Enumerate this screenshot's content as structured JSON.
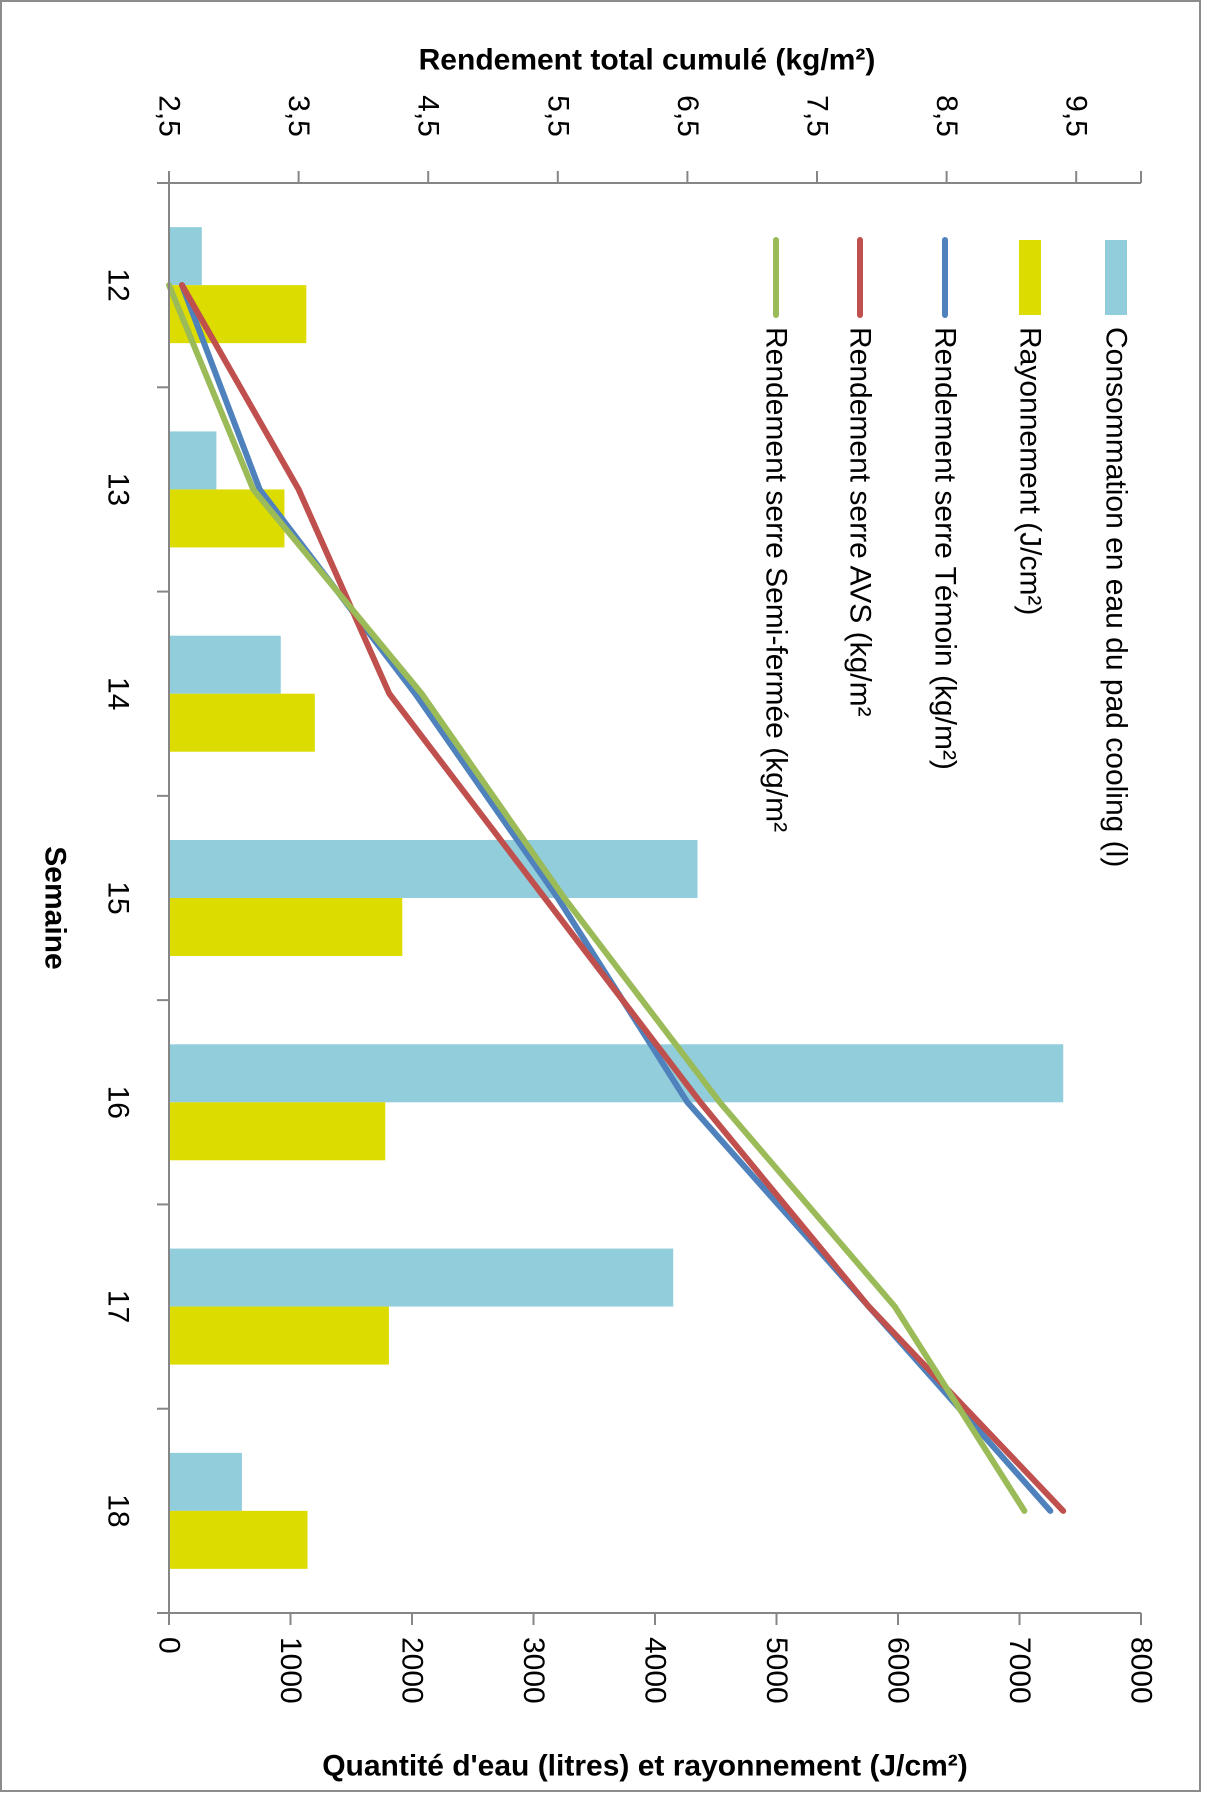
{
  "chart_data": {
    "type": "bar",
    "orientation": "rotated-90-clockwise",
    "categories": [
      "12",
      "13",
      "14",
      "15",
      "16",
      "17",
      "18"
    ],
    "xlabel": "Semaine",
    "primary_axis": {
      "label": "Quantité  d'eau (litres) et rayonnement (J/cm²)",
      "range": [
        0,
        8000
      ],
      "ticks": [
        "0",
        "1000",
        "2000",
        "3000",
        "4000",
        "5000",
        "6000",
        "7000",
        "8000"
      ]
    },
    "secondary_axis": {
      "label": "Rendement total cumulé (kg/m²)",
      "range": [
        2.5,
        10
      ],
      "ticks": [
        "2,5",
        "3,5",
        "4,5",
        "5,5",
        "6,5",
        "7,5",
        "8,5",
        "9,5"
      ]
    },
    "bar_series": [
      {
        "name": "Consommation en eau du pad cooling (l)",
        "color": "#92cddc",
        "values": [
          270,
          390,
          920,
          4350,
          7360,
          4150,
          600
        ]
      },
      {
        "name": "Rayonnement (J/cm²)",
        "color": "#dcdc00",
        "values": [
          1130,
          950,
          1200,
          1920,
          1780,
          1810,
          1140
        ]
      }
    ],
    "line_series": [
      {
        "name": "Rendement serre Témoin (kg/m²)",
        "color": "#4f81bd",
        "values": [
          2.6,
          3.2,
          4.4,
          5.5,
          6.5,
          7.9,
          9.3
        ]
      },
      {
        "name": "Rendement serre AVS (kg/m²",
        "color": "#c0504d",
        "values": [
          2.6,
          3.5,
          4.2,
          5.4,
          6.6,
          7.9,
          9.4
        ]
      },
      {
        "name": "Rendement serre Semi-fermée (kg/m²",
        "color": "#9bbb59",
        "values": [
          2.5,
          3.15,
          4.45,
          5.55,
          6.75,
          8.1,
          9.1
        ]
      }
    ],
    "legend_position": "top-right"
  },
  "colors": {
    "frame": "#8c8c8c",
    "axis": "#868686"
  }
}
